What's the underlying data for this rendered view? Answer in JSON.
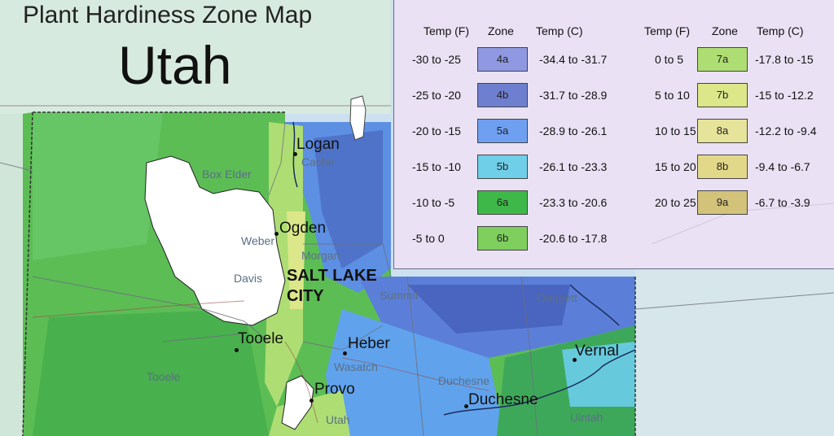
{
  "title": "Plant Hardiness Zone Map",
  "subtitle": "Utah",
  "legend": {
    "headers": {
      "temp_f": "Temp (F)",
      "zone": "Zone",
      "temp_c": "Temp (C)"
    },
    "left_rows": [
      {
        "temp_f": "-30 to -25",
        "zone": "4a",
        "temp_c": "-34.4 to -31.7",
        "color": "#8f98e0"
      },
      {
        "temp_f": "-25 to -20",
        "zone": "4b",
        "temp_c": "-31.7 to -28.9",
        "color": "#6f7fd0"
      },
      {
        "temp_f": "-20 to -15",
        "zone": "5a",
        "temp_c": "-28.9 to -26.1",
        "color": "#6f9ff0"
      },
      {
        "temp_f": "-15 to -10",
        "zone": "5b",
        "temp_c": "-26.1 to -23.3",
        "color": "#70cfe8"
      },
      {
        "temp_f": "-10 to -5",
        "zone": "6a",
        "temp_c": "-23.3 to -20.6",
        "color": "#3fb84a"
      },
      {
        "temp_f": "-5 to 0",
        "zone": "6b",
        "temp_c": "-20.6 to -17.8",
        "color": "#7fcf5f"
      }
    ],
    "right_rows": [
      {
        "temp_f": "0 to 5",
        "zone": "7a",
        "temp_c": "-17.8 to -15",
        "color": "#aede73"
      },
      {
        "temp_f": "5 to 10",
        "zone": "7b",
        "temp_c": "-15 to -12.2",
        "color": "#dce78a"
      },
      {
        "temp_f": "10 to 15",
        "zone": "8a",
        "temp_c": "-12.2 to -9.4",
        "color": "#e6e39a"
      },
      {
        "temp_f": "15 to 20",
        "zone": "8b",
        "temp_c": "-9.4 to -6.7",
        "color": "#e2d88a"
      },
      {
        "temp_f": "20 to 25",
        "zone": "9a",
        "temp_c": "-6.7 to -3.9",
        "color": "#d2c27a"
      }
    ]
  },
  "cities": {
    "logan": "Logan",
    "ogden": "Ogden",
    "salt_lake_1": "SALT LAKE",
    "salt_lake_2": "CITY",
    "tooele": "Tooele",
    "heber": "Heber",
    "provo": "Provo",
    "vernal": "Vernal",
    "duchesne": "Duchesne"
  },
  "counties": {
    "box_elder": "Box Elder",
    "cache": "Cache",
    "weber": "Weber",
    "davis": "Davis",
    "summit": "Summit",
    "daggett": "Daggett",
    "wasatch": "Wasatch",
    "duchesne": "Duchesne",
    "tooele": "Tooele",
    "morgan": "Morgan",
    "utah": "Utah",
    "uintah": "Uintah"
  }
}
